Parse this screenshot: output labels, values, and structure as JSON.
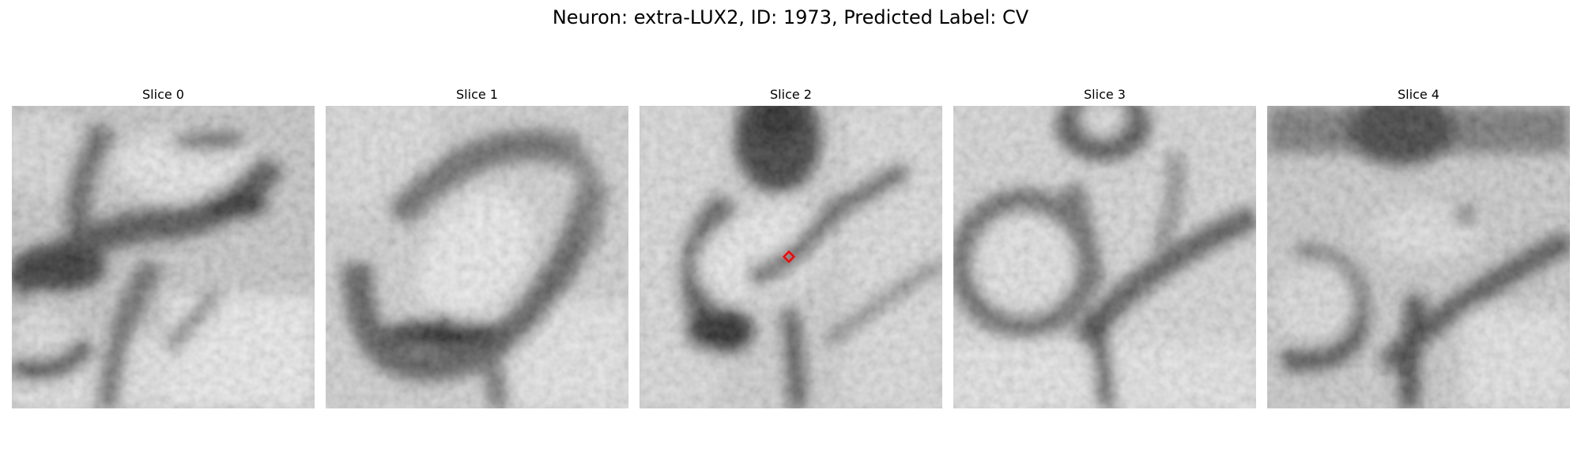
{
  "figure": {
    "suptitle": "Neuron: extra-LUX2, ID: 1973, Predicted Label: CV"
  },
  "panels": [
    {
      "title": "Slice 0",
      "has_marker": false
    },
    {
      "title": "Slice 1",
      "has_marker": false
    },
    {
      "title": "Slice 2",
      "has_marker": true
    },
    {
      "title": "Slice 3",
      "has_marker": false
    },
    {
      "title": "Slice 4",
      "has_marker": false
    }
  ],
  "colors": {
    "marker": "#ff0000",
    "colormap": "gray"
  }
}
